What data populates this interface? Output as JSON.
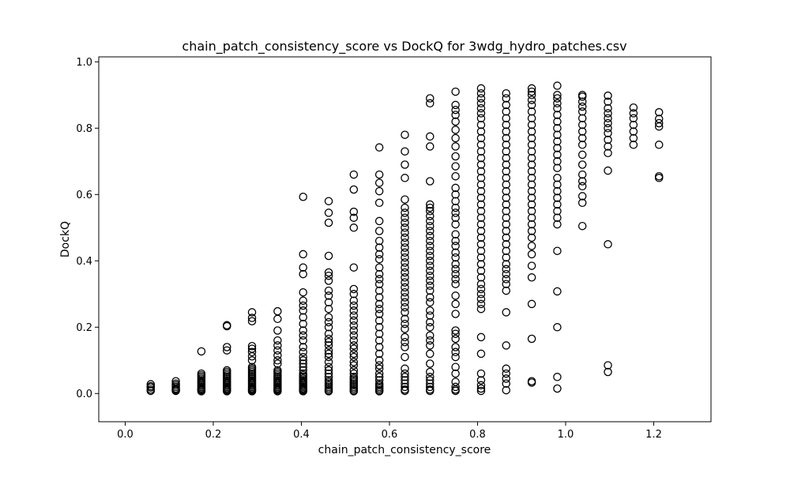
{
  "chart_data": {
    "type": "scatter",
    "title": "chain_patch_consistency_score vs DockQ for 3wdg_hydro_patches.csv",
    "xlabel": "chain_patch_consistency_score",
    "ylabel": "DockQ",
    "xlim": [
      -0.06,
      1.33
    ],
    "ylim": [
      -0.085,
      1.015
    ],
    "xticks": [
      0.0,
      0.2,
      0.4,
      0.6,
      0.8,
      1.0,
      1.2
    ],
    "xtick_labels": [
      "0.0",
      "0.2",
      "0.4",
      "0.6",
      "0.8",
      "1.0",
      "1.2"
    ],
    "yticks": [
      0.0,
      0.2,
      0.4,
      0.6,
      0.8,
      1.0
    ],
    "ytick_labels": [
      "0.0",
      "0.2",
      "0.4",
      "0.6",
      "0.8",
      "1.0"
    ],
    "grid": false,
    "marker": "open-circle",
    "marker_color": "#000000",
    "columns": [
      {
        "x": 0.058,
        "y": [
          0.008,
          0.012,
          0.018,
          0.022,
          0.028
        ]
      },
      {
        "x": 0.115,
        "y": [
          0.008,
          0.01,
          0.012,
          0.015,
          0.02,
          0.025,
          0.03,
          0.037
        ]
      },
      {
        "x": 0.173,
        "y": [
          0.007,
          0.01,
          0.013,
          0.016,
          0.02,
          0.024,
          0.028,
          0.032,
          0.036,
          0.04,
          0.045,
          0.05,
          0.055,
          0.06,
          0.127
        ]
      },
      {
        "x": 0.231,
        "y": [
          0.007,
          0.01,
          0.013,
          0.016,
          0.02,
          0.024,
          0.028,
          0.032,
          0.036,
          0.04,
          0.045,
          0.05,
          0.055,
          0.06,
          0.065,
          0.07,
          0.13,
          0.14,
          0.203,
          0.206
        ]
      },
      {
        "x": 0.288,
        "y": [
          0.007,
          0.01,
          0.013,
          0.016,
          0.02,
          0.024,
          0.028,
          0.032,
          0.036,
          0.04,
          0.045,
          0.05,
          0.055,
          0.06,
          0.065,
          0.07,
          0.075,
          0.08,
          0.1,
          0.112,
          0.125,
          0.135,
          0.143,
          0.218,
          0.228,
          0.245
        ]
      },
      {
        "x": 0.346,
        "y": [
          0.007,
          0.01,
          0.013,
          0.016,
          0.02,
          0.024,
          0.028,
          0.032,
          0.036,
          0.04,
          0.045,
          0.05,
          0.055,
          0.06,
          0.065,
          0.07,
          0.09,
          0.1,
          0.115,
          0.13,
          0.145,
          0.16,
          0.19,
          0.225,
          0.248
        ]
      },
      {
        "x": 0.404,
        "y": [
          0.007,
          0.01,
          0.013,
          0.016,
          0.02,
          0.024,
          0.028,
          0.032,
          0.036,
          0.04,
          0.045,
          0.05,
          0.055,
          0.06,
          0.07,
          0.08,
          0.09,
          0.1,
          0.11,
          0.125,
          0.14,
          0.16,
          0.175,
          0.19,
          0.21,
          0.23,
          0.25,
          0.265,
          0.28,
          0.305,
          0.36,
          0.38,
          0.42,
          0.593
        ]
      },
      {
        "x": 0.462,
        "y": [
          0.007,
          0.01,
          0.015,
          0.02,
          0.025,
          0.03,
          0.035,
          0.04,
          0.05,
          0.06,
          0.07,
          0.08,
          0.095,
          0.11,
          0.12,
          0.13,
          0.145,
          0.155,
          0.165,
          0.18,
          0.2,
          0.215,
          0.23,
          0.255,
          0.275,
          0.295,
          0.31,
          0.34,
          0.355,
          0.365,
          0.415,
          0.515,
          0.545,
          0.58
        ]
      },
      {
        "x": 0.519,
        "y": [
          0.007,
          0.01,
          0.015,
          0.02,
          0.025,
          0.03,
          0.035,
          0.04,
          0.045,
          0.05,
          0.06,
          0.07,
          0.085,
          0.095,
          0.11,
          0.12,
          0.135,
          0.145,
          0.16,
          0.175,
          0.19,
          0.205,
          0.22,
          0.235,
          0.25,
          0.265,
          0.28,
          0.3,
          0.315,
          0.38,
          0.5,
          0.53,
          0.548,
          0.615,
          0.66
        ]
      },
      {
        "x": 0.577,
        "y": [
          0.007,
          0.01,
          0.015,
          0.02,
          0.025,
          0.03,
          0.04,
          0.05,
          0.06,
          0.075,
          0.085,
          0.1,
          0.12,
          0.14,
          0.16,
          0.18,
          0.2,
          0.22,
          0.24,
          0.255,
          0.27,
          0.29,
          0.31,
          0.33,
          0.345,
          0.36,
          0.38,
          0.405,
          0.42,
          0.44,
          0.46,
          0.49,
          0.52,
          0.575,
          0.61,
          0.635,
          0.66,
          0.742
        ]
      },
      {
        "x": 0.635,
        "y": [
          0.008,
          0.012,
          0.02,
          0.03,
          0.04,
          0.05,
          0.06,
          0.075,
          0.11,
          0.14,
          0.155,
          0.17,
          0.195,
          0.21,
          0.225,
          0.245,
          0.26,
          0.275,
          0.29,
          0.305,
          0.32,
          0.335,
          0.35,
          0.365,
          0.38,
          0.395,
          0.41,
          0.425,
          0.44,
          0.455,
          0.47,
          0.485,
          0.5,
          0.515,
          0.53,
          0.545,
          0.56,
          0.585,
          0.65,
          0.69,
          0.73,
          0.78
        ]
      },
      {
        "x": 0.692,
        "y": [
          0.008,
          0.012,
          0.02,
          0.03,
          0.04,
          0.05,
          0.065,
          0.09,
          0.12,
          0.145,
          0.16,
          0.175,
          0.2,
          0.215,
          0.235,
          0.25,
          0.275,
          0.29,
          0.31,
          0.325,
          0.34,
          0.355,
          0.37,
          0.385,
          0.4,
          0.415,
          0.43,
          0.445,
          0.46,
          0.475,
          0.49,
          0.505,
          0.52,
          0.535,
          0.55,
          0.56,
          0.57,
          0.64,
          0.745,
          0.775,
          0.875,
          0.89
        ]
      },
      {
        "x": 0.75,
        "y": [
          0.008,
          0.012,
          0.02,
          0.035,
          0.06,
          0.08,
          0.11,
          0.125,
          0.14,
          0.165,
          0.18,
          0.19,
          0.24,
          0.27,
          0.295,
          0.33,
          0.345,
          0.36,
          0.375,
          0.39,
          0.41,
          0.425,
          0.445,
          0.46,
          0.48,
          0.51,
          0.53,
          0.545,
          0.56,
          0.58,
          0.6,
          0.62,
          0.655,
          0.685,
          0.715,
          0.745,
          0.77,
          0.795,
          0.82,
          0.84,
          0.855,
          0.87,
          0.91
        ]
      },
      {
        "x": 0.808,
        "y": [
          0.008,
          0.015,
          0.025,
          0.04,
          0.06,
          0.12,
          0.17,
          0.255,
          0.27,
          0.285,
          0.3,
          0.315,
          0.33,
          0.35,
          0.37,
          0.39,
          0.41,
          0.43,
          0.45,
          0.47,
          0.49,
          0.51,
          0.53,
          0.55,
          0.57,
          0.59,
          0.61,
          0.63,
          0.65,
          0.67,
          0.69,
          0.71,
          0.73,
          0.75,
          0.77,
          0.79,
          0.81,
          0.83,
          0.845,
          0.86,
          0.875,
          0.89,
          0.905,
          0.92
        ]
      },
      {
        "x": 0.865,
        "y": [
          0.01,
          0.03,
          0.045,
          0.06,
          0.075,
          0.145,
          0.245,
          0.31,
          0.33,
          0.345,
          0.36,
          0.375,
          0.39,
          0.41,
          0.43,
          0.45,
          0.47,
          0.49,
          0.51,
          0.53,
          0.55,
          0.57,
          0.59,
          0.61,
          0.63,
          0.65,
          0.67,
          0.69,
          0.71,
          0.73,
          0.75,
          0.77,
          0.79,
          0.81,
          0.83,
          0.85,
          0.87,
          0.89,
          0.905
        ]
      },
      {
        "x": 0.923,
        "y": [
          0.033,
          0.037,
          0.165,
          0.27,
          0.35,
          0.385,
          0.42,
          0.445,
          0.47,
          0.49,
          0.51,
          0.53,
          0.55,
          0.57,
          0.59,
          0.61,
          0.63,
          0.65,
          0.67,
          0.69,
          0.71,
          0.73,
          0.75,
          0.77,
          0.79,
          0.81,
          0.83,
          0.85,
          0.87,
          0.885,
          0.9,
          0.91,
          0.92
        ]
      },
      {
        "x": 0.981,
        "y": [
          0.015,
          0.05,
          0.2,
          0.308,
          0.43,
          0.51,
          0.53,
          0.55,
          0.57,
          0.59,
          0.61,
          0.63,
          0.65,
          0.68,
          0.7,
          0.72,
          0.74,
          0.76,
          0.78,
          0.8,
          0.82,
          0.84,
          0.86,
          0.875,
          0.89,
          0.9,
          0.928
        ]
      },
      {
        "x": 1.038,
        "y": [
          0.505,
          0.575,
          0.595,
          0.625,
          0.64,
          0.66,
          0.69,
          0.72,
          0.75,
          0.77,
          0.79,
          0.81,
          0.83,
          0.85,
          0.865,
          0.88,
          0.895,
          0.9
        ]
      },
      {
        "x": 1.096,
        "y": [
          0.065,
          0.085,
          0.45,
          0.672,
          0.725,
          0.745,
          0.765,
          0.785,
          0.8,
          0.815,
          0.83,
          0.845,
          0.86,
          0.88,
          0.898
        ]
      },
      {
        "x": 1.154,
        "y": [
          0.75,
          0.77,
          0.79,
          0.81,
          0.83,
          0.845,
          0.862
        ]
      },
      {
        "x": 1.212,
        "y": [
          0.65,
          0.655,
          0.75,
          0.805,
          0.815,
          0.828,
          0.848
        ]
      }
    ]
  }
}
